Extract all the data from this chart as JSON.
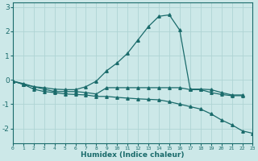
{
  "xlabel": "Humidex (Indice chaleur)",
  "ylabel": "",
  "background_color": "#cce8e8",
  "grid_color": "#afd4d4",
  "line_color": "#1a6b6b",
  "x": [
    0,
    1,
    2,
    3,
    4,
    5,
    6,
    7,
    8,
    9,
    10,
    11,
    12,
    13,
    14,
    15,
    16,
    17,
    18,
    19,
    20,
    21,
    22,
    23
  ],
  "series1": [
    -0.05,
    -0.15,
    -0.28,
    -0.32,
    -0.38,
    -0.4,
    -0.4,
    -0.28,
    -0.05,
    0.38,
    0.7,
    1.1,
    1.65,
    2.2,
    2.62,
    2.68,
    2.05,
    -0.38,
    -0.38,
    -0.4,
    -0.52,
    -0.62,
    -0.62,
    null
  ],
  "series2": [
    -0.05,
    -0.18,
    -0.28,
    -0.38,
    -0.48,
    -0.48,
    -0.48,
    -0.52,
    -0.58,
    -0.32,
    -0.32,
    -0.32,
    -0.32,
    -0.32,
    -0.32,
    -0.32,
    -0.32,
    -0.4,
    -0.4,
    -0.52,
    -0.6,
    -0.65,
    -0.65,
    null
  ],
  "series3": [
    -0.05,
    -0.18,
    -0.38,
    -0.48,
    -0.52,
    -0.58,
    -0.6,
    -0.62,
    -0.68,
    -0.68,
    -0.72,
    -0.75,
    -0.78,
    -0.8,
    -0.82,
    -0.9,
    -1.0,
    -1.1,
    -1.2,
    -1.4,
    -1.65,
    -1.85,
    -2.1,
    -2.2
  ],
  "ylim": [
    -2.6,
    3.2
  ],
  "xlim": [
    0,
    23
  ],
  "yticks": [
    -2,
    -1,
    0,
    1,
    2,
    3
  ],
  "xticks": [
    0,
    1,
    2,
    3,
    4,
    5,
    6,
    7,
    8,
    9,
    10,
    11,
    12,
    13,
    14,
    15,
    16,
    17,
    18,
    19,
    20,
    21,
    22,
    23
  ]
}
